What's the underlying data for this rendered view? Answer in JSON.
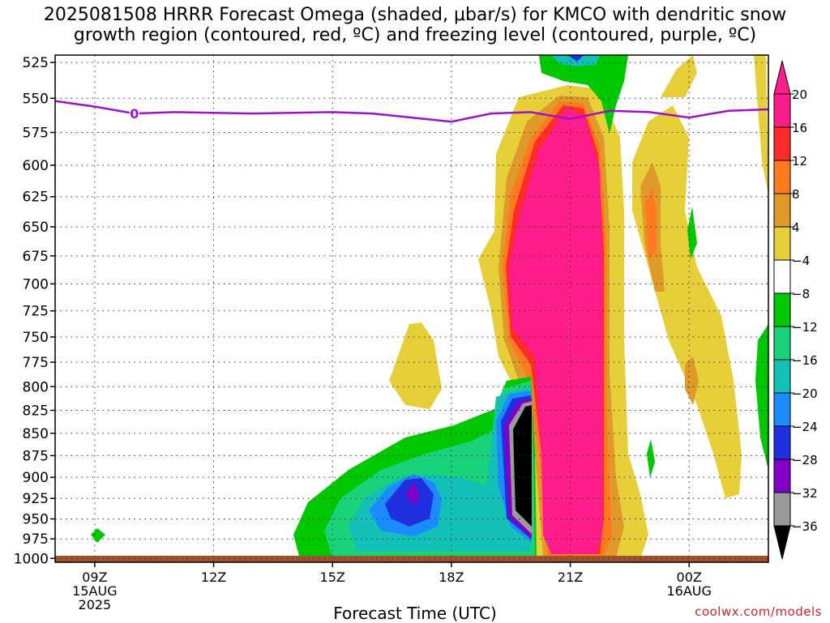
{
  "title": {
    "line1": "2025081508 HRRR Forecast Omega (shaded, μbar/s) for KMCO with dendritic snow",
    "line2": "growth region (contoured, red, ºC) and freezing level (contoured, purple, ºC)"
  },
  "x_axis_title": "Forecast Time (UTC)",
  "credit": "coolwx.com/models",
  "chart_data": {
    "type": "heatmap",
    "title": "2025081508 HRRR Forecast Omega (shaded, μbar/s) for KMCO with dendritic snow growth region (contoured, red, ºC) and freezing level (contoured, purple, ºC)",
    "xlabel": "Forecast Time (UTC)",
    "ylabel": "",
    "y_reversed": true,
    "xlim": [
      "2025-08-15 08:00Z",
      "2025-08-16 02:00Z"
    ],
    "ylim": [
      1005,
      520
    ],
    "grid": "dotted",
    "x_ticks": [
      {
        "time": "09Z",
        "date": "15AUG",
        "year": "2025"
      },
      {
        "time": "12Z",
        "date": "",
        "year": ""
      },
      {
        "time": "15Z",
        "date": "",
        "year": ""
      },
      {
        "time": "18Z",
        "date": "",
        "year": ""
      },
      {
        "time": "21Z",
        "date": "",
        "year": ""
      },
      {
        "time": "00Z",
        "date": "16AUG",
        "year": ""
      }
    ],
    "y_ticks": [
      525,
      550,
      575,
      600,
      625,
      650,
      675,
      700,
      725,
      750,
      775,
      800,
      825,
      850,
      875,
      900,
      925,
      950,
      975,
      1000
    ],
    "colorbar": {
      "units": "μbar/s",
      "levels": [
        20,
        16,
        12,
        8,
        4,
        -4,
        -8,
        -12,
        -16,
        -20,
        -24,
        -28,
        -32,
        -36
      ],
      "colors": [
        "#ff1d8c",
        "#ff2a2a",
        "#ff7a1f",
        "#e09a2a",
        "#e7cf3a",
        "#ffffff",
        "#00c800",
        "#19d27a",
        "#12c0b8",
        "#1a8cff",
        "#2030e0",
        "#8000c8",
        "#9a9a9a",
        "#000000"
      ]
    },
    "freezing_level": {
      "label": "0",
      "color": "#a010c8",
      "points": [
        {
          "t": "08:00Z",
          "p": 552
        },
        {
          "t": "09:00Z",
          "p": 556
        },
        {
          "t": "10:00Z",
          "p": 561
        },
        {
          "t": "11:00Z",
          "p": 560
        },
        {
          "t": "13:00Z",
          "p": 561
        },
        {
          "t": "15:00Z",
          "p": 560
        },
        {
          "t": "16:00Z",
          "p": 561
        },
        {
          "t": "17:00Z",
          "p": 564
        },
        {
          "t": "18:00Z",
          "p": 567
        },
        {
          "t": "19:00Z",
          "p": 561
        },
        {
          "t": "20:00Z",
          "p": 560
        },
        {
          "t": "21:00Z",
          "p": 565
        },
        {
          "t": "22:00Z",
          "p": 559
        },
        {
          "t": "23:00Z",
          "p": 560
        },
        {
          "t": "00:00Z",
          "p": 564
        },
        {
          "t": "01:00Z",
          "p": 559
        },
        {
          "t": "02:00Z",
          "p": 558
        }
      ]
    },
    "ground_color": "#a0522d"
  }
}
